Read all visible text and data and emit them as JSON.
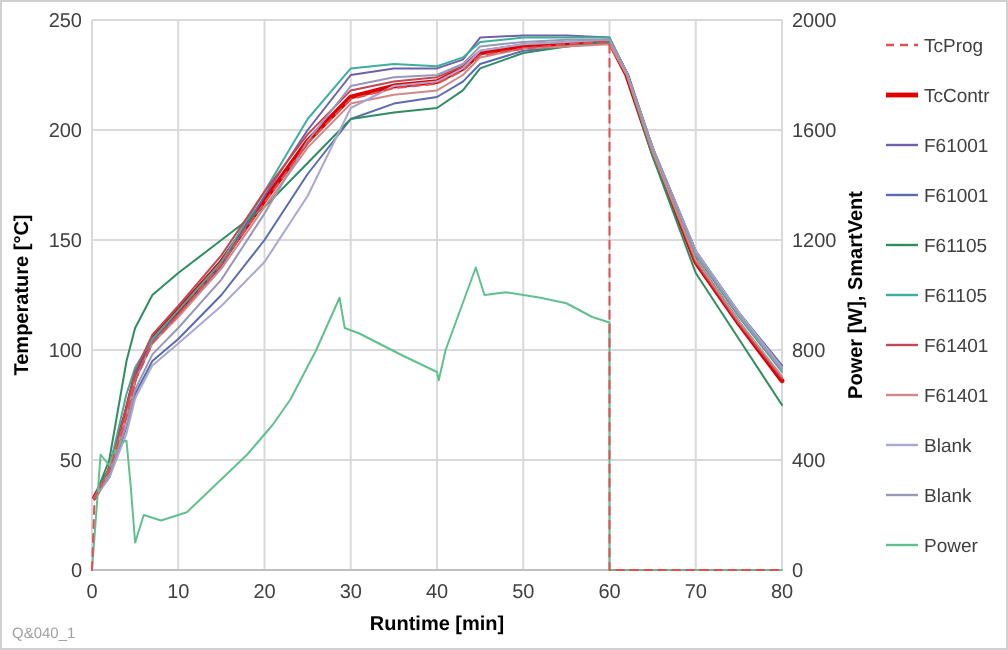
{
  "chart_data": {
    "type": "line",
    "xlabel": "Runtime  [min]",
    "ylabel": "Temperature [°C]",
    "y2label": "Power [W], SmartVent",
    "xlim": [
      0,
      80
    ],
    "xticks": [
      0,
      10,
      20,
      30,
      40,
      50,
      60,
      70,
      80
    ],
    "ylim": [
      0,
      250
    ],
    "yticks": [
      0,
      50,
      100,
      150,
      200,
      250
    ],
    "y2lim": [
      0,
      2000
    ],
    "y2ticks": [
      0,
      400,
      800,
      1200,
      1600,
      2000
    ],
    "grid": true,
    "legend": "right",
    "x": [
      0.3,
      2,
      4,
      5,
      7,
      10,
      15,
      20,
      25,
      30,
      35,
      40,
      43,
      45,
      50,
      55,
      60,
      62,
      65,
      70,
      75,
      80
    ],
    "annotations": [
      "Q&040_1"
    ],
    "series": [
      {
        "name": "TcProg",
        "color": "#e05050",
        "line_style": "dashed",
        "x": [
          0,
          0.3,
          2,
          4,
          5,
          7,
          10,
          15,
          20,
          25,
          30,
          35,
          40,
          43,
          45,
          50,
          55,
          60,
          60,
          80
        ],
        "values": [
          0,
          33,
          45,
          70,
          86,
          103,
          116,
          139,
          167,
          194,
          214,
          219,
          221,
          227,
          234,
          237,
          239,
          240,
          0,
          0
        ]
      },
      {
        "name": "TcContr",
        "color": "#e00000",
        "line_style": "solid",
        "values": [
          33,
          45,
          72,
          88,
          105,
          118,
          140,
          168,
          195,
          215,
          220,
          222,
          228,
          235,
          238,
          239,
          240,
          225,
          190,
          140,
          112,
          86
        ]
      },
      {
        "name": "F61001",
        "color": "#7060a8",
        "line_style": "solid",
        "values": [
          33,
          44,
          70,
          88,
          104,
          116,
          138,
          170,
          200,
          225,
          228,
          228,
          232,
          242,
          243,
          243,
          242,
          226,
          192,
          145,
          117,
          93
        ]
      },
      {
        "name": "F61001",
        "color": "#5a6cb0",
        "line_style": "solid",
        "values": [
          33,
          42,
          65,
          80,
          95,
          105,
          125,
          150,
          180,
          205,
          212,
          215,
          222,
          230,
          236,
          238,
          240,
          226,
          192,
          145,
          117,
          92
        ]
      },
      {
        "name": "F61105",
        "color": "#2e8e62",
        "line_style": "solid",
        "values": [
          33,
          50,
          95,
          110,
          125,
          135,
          150,
          165,
          185,
          205,
          208,
          210,
          218,
          228,
          235,
          238,
          240,
          225,
          188,
          135,
          105,
          75
        ]
      },
      {
        "name": "F61105",
        "color": "#3cb09a",
        "line_style": "solid",
        "values": [
          33,
          46,
          80,
          92,
          105,
          118,
          140,
          172,
          205,
          228,
          230,
          229,
          233,
          240,
          242,
          242,
          242,
          226,
          192,
          143,
          115,
          90
        ]
      },
      {
        "name": "F61401",
        "color": "#c04858",
        "line_style": "solid",
        "values": [
          33,
          45,
          74,
          90,
          107,
          120,
          143,
          172,
          198,
          218,
          222,
          224,
          229,
          236,
          239,
          240,
          241,
          226,
          190,
          140,
          112,
          87
        ]
      },
      {
        "name": "F61401",
        "color": "#d08888",
        "line_style": "solid",
        "values": [
          33,
          44,
          70,
          86,
          103,
          115,
          137,
          165,
          192,
          212,
          216,
          218,
          225,
          233,
          237,
          238,
          239,
          225,
          190,
          141,
          113,
          88
        ]
      },
      {
        "name": "Blank",
        "color": "#a8a8d0",
        "line_style": "solid",
        "values": [
          33,
          42,
          62,
          78,
          93,
          103,
          120,
          140,
          170,
          210,
          220,
          222,
          228,
          236,
          239,
          240,
          241,
          226,
          192,
          145,
          117,
          92
        ]
      },
      {
        "name": "Blank",
        "color": "#9898b8",
        "line_style": "solid",
        "values": [
          33,
          43,
          66,
          82,
          98,
          110,
          132,
          162,
          195,
          220,
          224,
          225,
          230,
          238,
          240,
          241,
          241,
          226,
          192,
          144,
          116,
          91
        ]
      },
      {
        "name": "Power",
        "color": "#60c090",
        "line_style": "solid",
        "axis": "y2",
        "x": [
          0,
          1,
          2,
          3,
          4,
          4.5,
          5,
          6,
          8,
          11,
          14,
          18,
          21,
          23,
          26,
          28.7,
          29.3,
          31,
          36,
          40,
          40.2,
          41,
          44.5,
          45.5,
          48,
          52,
          55,
          58,
          60,
          60,
          80
        ],
        "values": [
          0,
          420,
          380,
          460,
          470,
          300,
          100,
          200,
          180,
          210,
          300,
          420,
          530,
          620,
          800,
          990,
          880,
          860,
          780,
          720,
          690,
          800,
          1100,
          1000,
          1010,
          990,
          970,
          920,
          900,
          0,
          0
        ]
      }
    ]
  }
}
